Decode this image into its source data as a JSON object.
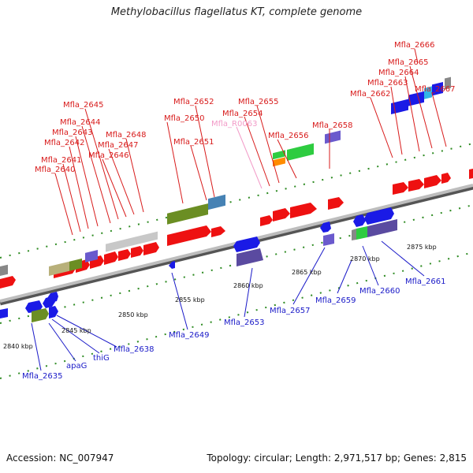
{
  "title": "Methylobacillus flagellatus KT, complete genome",
  "accession": "Accession: NC_007947",
  "summary": "Topology: circular; Length: 2,971,517 bp; Genes: 2,815",
  "colors": {
    "forward_label": "#d81b1b",
    "reverse_label": "#1a1ac8",
    "rna_label": "#f29bc8",
    "forward_gene": "#ee1111",
    "reverse_gene": "#1a1ae6",
    "axis": "#888888",
    "tick": "#2e8b22"
  },
  "scale_labels": [
    "2840 kbp",
    "2845 kbp",
    "2850 kbp",
    "2855 kbp",
    "2860 kbp",
    "2865 kbp",
    "2870 kbp",
    "2875 kbp"
  ],
  "forward_labels": [
    "Mfla_2640",
    "Mfla_2641",
    "Mfla_2642",
    "Mfla_2643",
    "Mfla_2644",
    "Mfla_2645",
    "Mfla_2646",
    "Mfla_2647",
    "Mfla_2648",
    "Mfla_2650",
    "Mfla_2651",
    "Mfla_2652",
    "Mfla_R0063",
    "Mfla_2654",
    "Mfla_2655",
    "Mfla_2656",
    "Mfla_2658",
    "Mfla_2662",
    "Mfla_2663",
    "Mfla_2664",
    "Mfla_2665",
    "Mfla_2666",
    "Mfla_2667"
  ],
  "reverse_labels": [
    "Mfla_2635",
    "apaG",
    "thiG",
    "Mfla_2638",
    "Mfla_2649",
    "Mfla_2653",
    "Mfla_2657",
    "Mfla_2659",
    "Mfla_2660",
    "Mfla_2661"
  ]
}
